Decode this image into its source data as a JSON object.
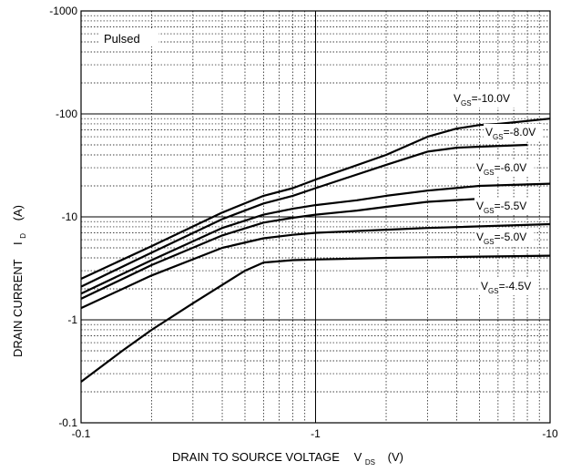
{
  "chart_data": {
    "type": "line",
    "title": "",
    "xlabel": {
      "main": "DRAIN TO SOURCE VOLTAGE",
      "sym": "V",
      "sub": "DS",
      "unit": "(V)"
    },
    "ylabel": {
      "main": "DRAIN CURRENT",
      "sym": "I",
      "sub": "D",
      "unit": "(A)"
    },
    "x_scale": "log",
    "y_scale": "log",
    "xlim": [
      -0.1,
      -10
    ],
    "ylim": [
      -0.1,
      -1000
    ],
    "x_ticks": [
      {
        "value": -0.1,
        "label": "-0.1"
      },
      {
        "value": -1,
        "label": "-1"
      },
      {
        "value": -10,
        "label": "-10"
      }
    ],
    "y_ticks": [
      {
        "value": -0.1,
        "label": "-0.1"
      },
      {
        "value": -1,
        "label": "-1"
      },
      {
        "value": -10,
        "label": "-10"
      },
      {
        "value": -100,
        "label": "-100"
      },
      {
        "value": -1000,
        "label": "-1000"
      }
    ],
    "grid": true,
    "annotation": "Pulsed",
    "series": [
      {
        "name": "V_GS=-10.0V",
        "label_sym": "V",
        "label_sub": "GS",
        "label_val": "=-10.0V",
        "x": [
          -0.1,
          -0.2,
          -0.4,
          -0.6,
          -0.8,
          -1,
          -2,
          -3,
          -4,
          -5,
          -6,
          -10
        ],
        "y": [
          -2.5,
          -5.2,
          -11,
          -16,
          -19,
          -23,
          -40,
          -60,
          -72,
          -78,
          -80,
          -90
        ]
      },
      {
        "name": "V_GS=-8.0V",
        "label_sym": "V",
        "label_sub": "GS",
        "label_val": "=-8.0V",
        "x": [
          -0.1,
          -0.2,
          -0.4,
          -0.6,
          -0.8,
          -1,
          -2,
          -3,
          -4,
          -5,
          -8
        ],
        "y": [
          -2.1,
          -4.5,
          -9.5,
          -13.5,
          -16,
          -19,
          -32,
          -43,
          -47,
          -48,
          -50
        ]
      },
      {
        "name": "V_GS=-6.0V",
        "label_sym": "V",
        "label_sub": "GS",
        "label_val": "=-6.0V",
        "x": [
          -0.1,
          -0.2,
          -0.4,
          -0.6,
          -0.8,
          -1,
          -1.5,
          -2,
          -3,
          -5,
          -10
        ],
        "y": [
          -1.8,
          -3.8,
          -7.8,
          -10.5,
          -12,
          -13,
          -14.5,
          -16,
          -18,
          -20,
          -21
        ]
      },
      {
        "name": "V_GS=-5.5V",
        "label_sym": "V",
        "label_sub": "GS",
        "label_val": "=-5.5V",
        "x": [
          -0.1,
          -0.2,
          -0.4,
          -0.6,
          -0.8,
          -1,
          -1.5,
          -2,
          -3,
          -5
        ],
        "y": [
          -1.6,
          -3.4,
          -6.6,
          -8.8,
          -9.8,
          -10.5,
          -11.5,
          -12.5,
          -14,
          -15
        ]
      },
      {
        "name": "V_GS=-5.0V",
        "label_sym": "V",
        "label_sub": "GS",
        "label_val": "=-5.0V",
        "x": [
          -0.1,
          -0.2,
          -0.4,
          -0.6,
          -0.8,
          -1,
          -2,
          -3,
          -10
        ],
        "y": [
          -1.3,
          -2.7,
          -5,
          -6.2,
          -6.7,
          -7,
          -7.5,
          -7.8,
          -8.5
        ]
      },
      {
        "name": "V_GS=-4.5V",
        "label_sym": "V",
        "label_sub": "GS",
        "label_val": "=-4.5V",
        "x": [
          -0.1,
          -0.15,
          -0.2,
          -0.3,
          -0.5,
          -0.6,
          -0.8,
          -1,
          -2,
          -10
        ],
        "y": [
          -0.25,
          -0.5,
          -0.8,
          -1.45,
          -3,
          -3.6,
          -3.8,
          -3.85,
          -4.0,
          -4.2
        ]
      }
    ]
  }
}
